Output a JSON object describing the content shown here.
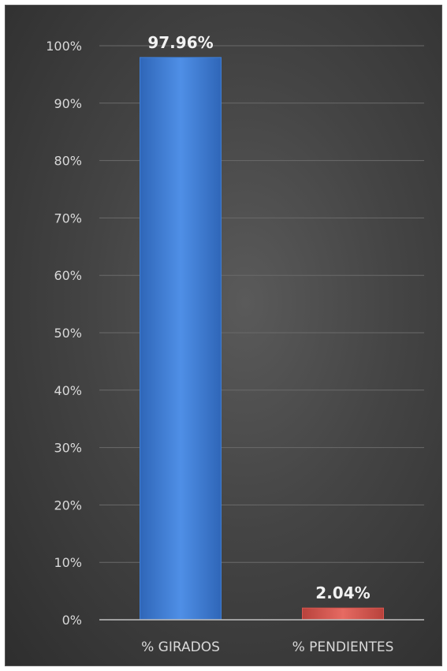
{
  "chart_data": {
    "type": "bar",
    "categories": [
      "% GIRADOS",
      "% PENDIENTES"
    ],
    "values": [
      97.96,
      2.04
    ],
    "data_labels": [
      "97.96%",
      "2.04%"
    ],
    "y_ticks": [
      "0%",
      "10%",
      "20%",
      "30%",
      "40%",
      "50%",
      "60%",
      "70%",
      "80%",
      "90%",
      "100%"
    ],
    "ylim": [
      0,
      100
    ],
    "grid": true,
    "legend": "none",
    "colors": [
      "#3f7fd6",
      "#d9564f"
    ]
  }
}
